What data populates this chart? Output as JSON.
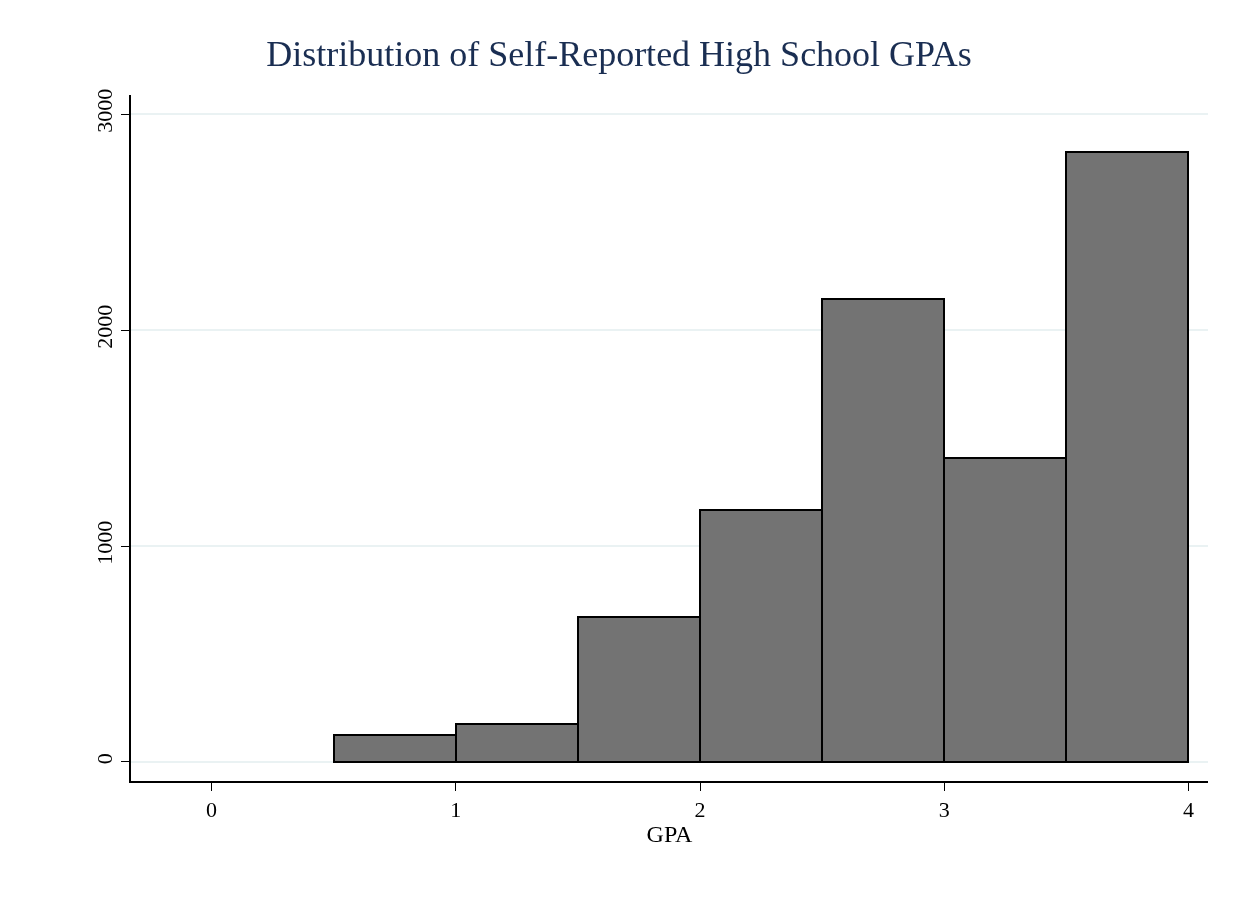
{
  "chart_data": {
    "type": "histogram",
    "title": "Distribution of Self-Reported High School GPAs",
    "xlabel": "GPA",
    "bins": [
      0.5,
      1,
      1.5,
      2,
      2.5,
      3,
      3.5,
      4
    ],
    "values": [
      125,
      176,
      671,
      1167,
      2144,
      1407,
      2824
    ],
    "color": "#737373",
    "xlim": [
      -0.33,
      4.08
    ],
    "xticks": [
      0,
      1,
      2,
      3,
      4
    ],
    "ylim": [
      -88,
      3088
    ],
    "yticks": [
      0,
      1000,
      2000,
      3000
    ],
    "grid": "y"
  }
}
